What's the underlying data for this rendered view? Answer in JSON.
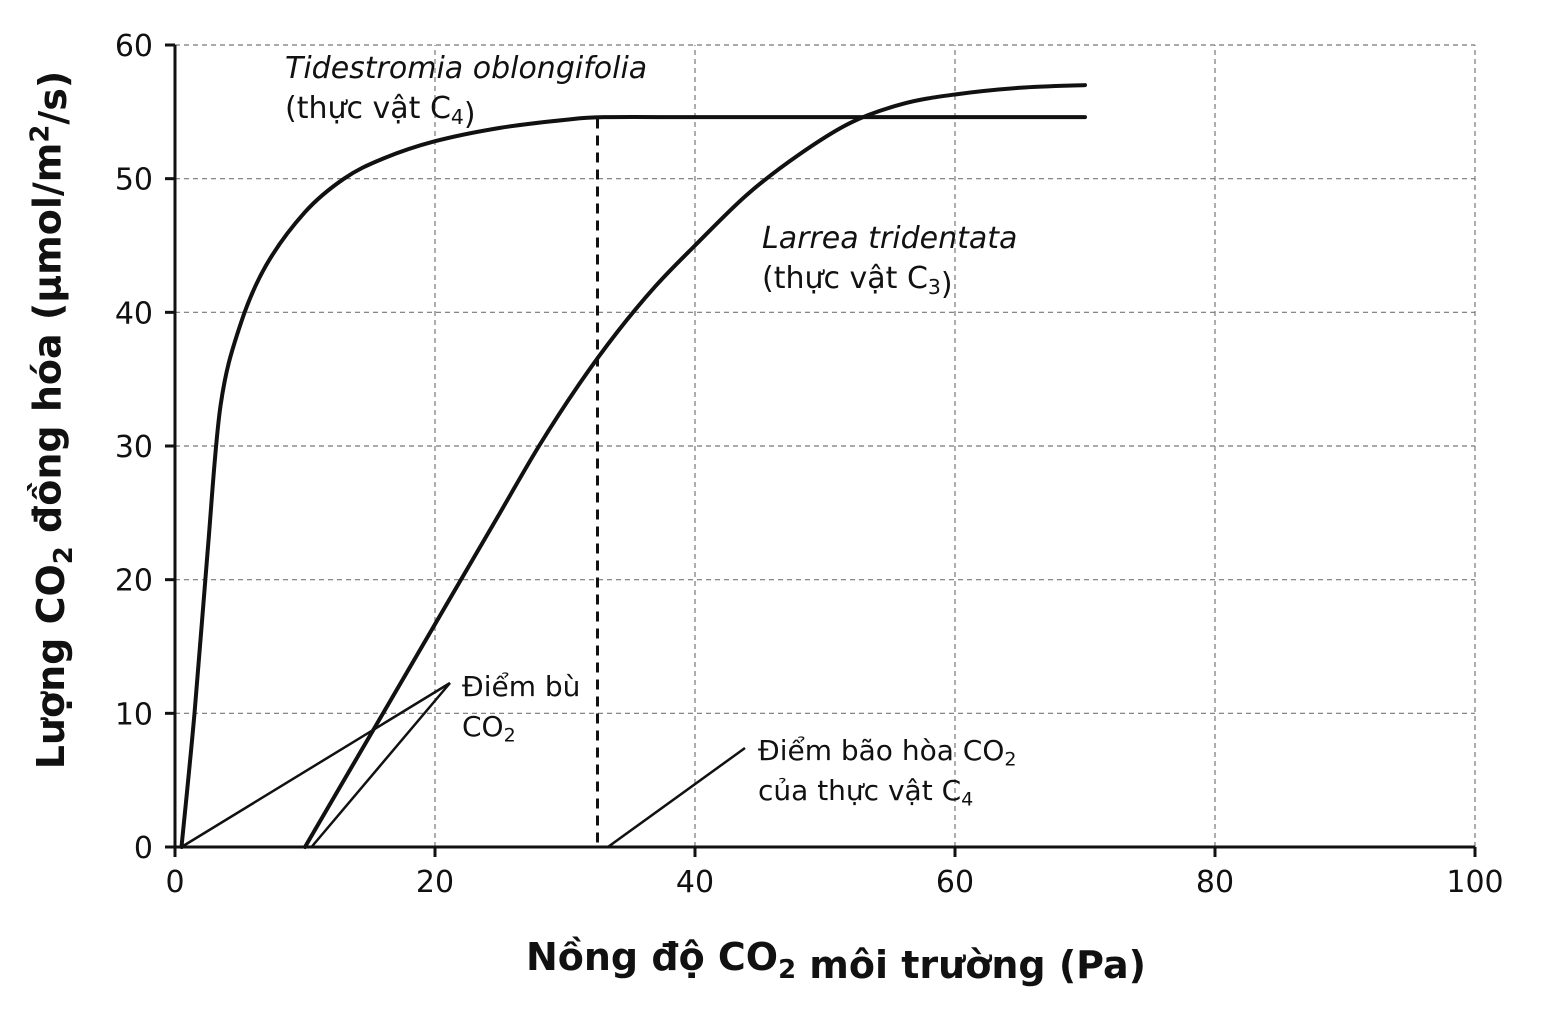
{
  "chart_data": {
    "type": "line",
    "xlabel_parts": [
      "Nồng độ CO",
      "2",
      " môi trường (Pa)"
    ],
    "ylabel_parts": [
      "Lượng CO",
      "2",
      " đồng hóa (μmol/m",
      "2",
      "/s)"
    ],
    "xlim": [
      0,
      100
    ],
    "ylim": [
      0,
      60
    ],
    "x_ticks": [
      0,
      20,
      40,
      60,
      80,
      100
    ],
    "y_ticks": [
      0,
      10,
      20,
      30,
      40,
      50,
      60
    ],
    "grid": true,
    "series": [
      {
        "name": "Tidestromia oblongifolia",
        "note_parts": [
          "(thực vật C",
          "4",
          ")"
        ],
        "x": [
          0.5,
          1.5,
          2.5,
          3.5,
          5,
          7,
          10,
          13,
          16,
          20,
          25,
          30,
          33,
          40,
          50,
          60,
          70
        ],
        "y": [
          0,
          10,
          22,
          33,
          39,
          43.5,
          47.5,
          50,
          51.5,
          52.8,
          53.8,
          54.4,
          54.6,
          54.6,
          54.6,
          54.6,
          54.6
        ]
      },
      {
        "name": "Larrea tridentata",
        "note_parts": [
          "(thực vật C",
          "3",
          ")"
        ],
        "x": [
          10,
          13,
          16,
          19,
          22,
          25,
          28,
          31,
          34,
          37,
          40,
          44,
          48,
          52,
          56,
          60,
          65,
          70
        ],
        "y": [
          0,
          5,
          10,
          15,
          20,
          25,
          30,
          34.5,
          38.5,
          42,
          45,
          48.8,
          51.8,
          54.2,
          55.6,
          56.3,
          56.8,
          57
        ]
      }
    ],
    "vline_x": 32.5,
    "annotations": [
      {
        "text_parts": [
          "Điểm bù"
        ],
        "text2_parts": [
          "CO",
          "2"
        ]
      },
      {
        "text_parts": [
          "Điểm bão hòa CO",
          "2"
        ],
        "text2_parts": [
          "của thực vật C",
          "4"
        ]
      }
    ]
  }
}
